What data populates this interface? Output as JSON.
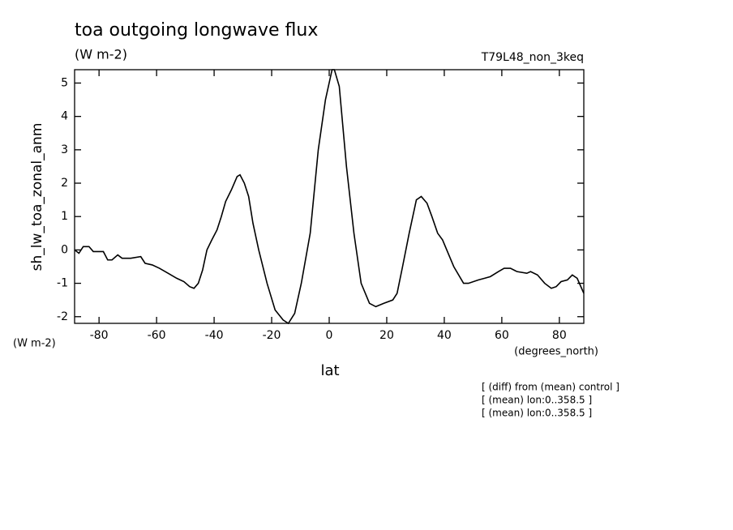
{
  "chart_data": {
    "type": "line",
    "title": "toa outgoing longwave flux",
    "subtitle": "(W m-2)",
    "run_label": "T79L48_non_3keq",
    "y_axis_label": "sh_lw_toa_zonal_anm",
    "y_units": "(W m-2)",
    "x_axis_label": "lat",
    "x_units": "(degrees_north)",
    "notes": [
      "[ (diff) from (mean) control ]",
      "[ (mean) lon:0..358.5 ]",
      "[ (mean) lon:0..358.5 ]"
    ],
    "x": [
      -88.5,
      -87,
      -85.5,
      -83.5,
      -82,
      -78.5,
      -77,
      -75.5,
      -73.5,
      -72,
      -69,
      -65.5,
      -64,
      -61.5,
      -59,
      -56,
      -53,
      -50.5,
      -48.5,
      -47,
      -45.5,
      -44,
      -42.5,
      -40.8,
      -39,
      -37.5,
      -36,
      -34,
      -32,
      -31,
      -29.5,
      -28,
      -26.5,
      -24.5,
      -21.6,
      -18.8,
      -16,
      -14.2,
      -12,
      -9.7,
      -6.6,
      -3.8,
      -1.3,
      1,
      1.8,
      3.5,
      6,
      8.6,
      11.1,
      14,
      16.2,
      19,
      22.1,
      23.6,
      25.5,
      27.8,
      30.3,
      32,
      34,
      35.7,
      37.7,
      39.4,
      43.3,
      46.7,
      48.4,
      51.8,
      54,
      56,
      58.8,
      60.8,
      63,
      65.3,
      68.7,
      70,
      72.4,
      74.9,
      77.2,
      78.9,
      80.6,
      82.8,
      84.5,
      86.2,
      88.5
    ],
    "series": [
      {
        "name": "sh_lw_toa_zonal_anm",
        "color": "#000000",
        "values": [
          0.0,
          -0.1,
          0.1,
          0.1,
          -0.05,
          -0.05,
          -0.3,
          -0.3,
          -0.15,
          -0.25,
          -0.25,
          -0.2,
          -0.4,
          -0.45,
          -0.55,
          -0.7,
          -0.85,
          -0.95,
          -1.1,
          -1.15,
          -1.0,
          -0.6,
          0.0,
          0.3,
          0.6,
          1.0,
          1.45,
          1.8,
          2.2,
          2.25,
          2.0,
          1.6,
          0.8,
          0.0,
          -1.0,
          -1.8,
          -2.1,
          -2.2,
          -1.9,
          -1.0,
          0.5,
          3.0,
          4.5,
          5.4,
          5.4,
          4.9,
          2.5,
          0.5,
          -1.0,
          -1.6,
          -1.7,
          -1.6,
          -1.5,
          -1.3,
          -0.5,
          0.5,
          1.5,
          1.6,
          1.4,
          1.0,
          0.5,
          0.3,
          -0.5,
          -1.0,
          -1.0,
          -0.9,
          -0.85,
          -0.8,
          -0.65,
          -0.55,
          -0.55,
          -0.65,
          -0.7,
          -0.65,
          -0.75,
          -1.0,
          -1.15,
          -1.1,
          -0.95,
          -0.9,
          -0.75,
          -0.85,
          -1.3
        ]
      }
    ],
    "xlim": [
      -88.5,
      88.5
    ],
    "ylim": [
      -2.2,
      5.4
    ],
    "xticks": [
      -80,
      -60,
      -40,
      -20,
      0,
      20,
      40,
      60,
      80
    ],
    "yticks": [
      -2,
      -1,
      0,
      1,
      2,
      3,
      4,
      5
    ]
  }
}
